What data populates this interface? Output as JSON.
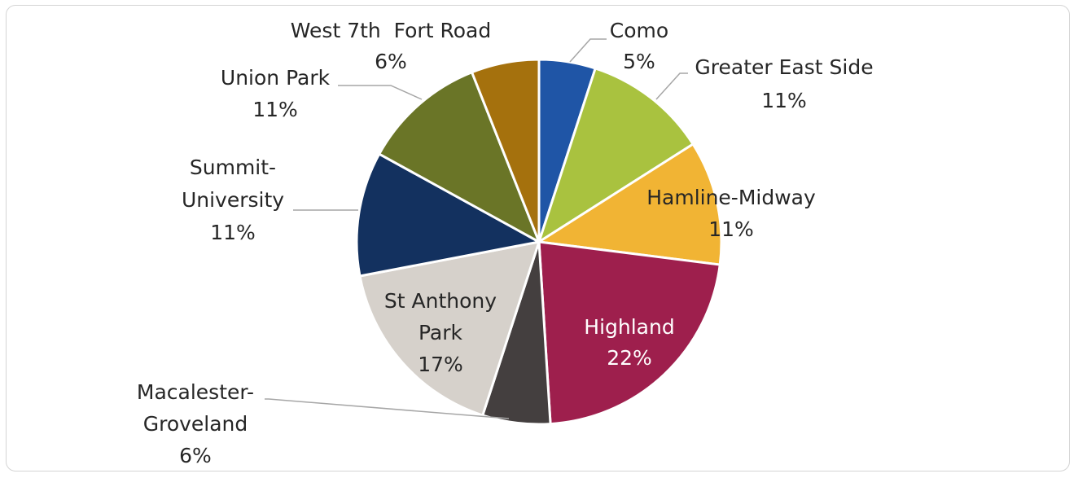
{
  "chart_data": {
    "type": "pie",
    "title": "",
    "slices": [
      {
        "name": "Como",
        "value": 5,
        "label": "5%",
        "color": "#1f55a6"
      },
      {
        "name": "Greater East Side",
        "value": 11,
        "label": "11%",
        "color": "#a9c23f"
      },
      {
        "name": "Hamline-Midway",
        "value": 11,
        "label": "11%",
        "color": "#f1b434"
      },
      {
        "name": "Highland",
        "value": 22,
        "label": "22%",
        "color": "#9e1f4d"
      },
      {
        "name": "Macalester-Groveland",
        "value": 6,
        "label": "6%",
        "color": "#443f3f"
      },
      {
        "name": "St Anthony Park",
        "value": 17,
        "label": "17%",
        "color": "#d6d1cb"
      },
      {
        "name": "Summit-University",
        "value": 11,
        "label": "11%",
        "color": "#13315f"
      },
      {
        "name": "Union Park",
        "value": 11,
        "label": "11%",
        "color": "#6a7527"
      },
      {
        "name": "West 7th  Fort Road",
        "value": 6,
        "label": "6%",
        "color": "#a5710d"
      }
    ]
  },
  "labels": {
    "como": {
      "line1": "Como",
      "pct": "5%"
    },
    "greater_east_side": {
      "line1": "Greater East Side",
      "pct": "11%"
    },
    "hamline_midway": {
      "line1": "Hamline-Midway",
      "pct": "11%"
    },
    "highland": {
      "line1": "Highland",
      "pct": "22%"
    },
    "macalester_groveland": {
      "line1": "Macalester-",
      "line2": "Groveland",
      "pct": "6%"
    },
    "st_anthony_park": {
      "line1": "St Anthony",
      "line2": "Park",
      "pct": "17%"
    },
    "summit_university": {
      "line1": "Summit-",
      "line2": "University",
      "pct": "11%"
    },
    "union_park": {
      "line1": "Union Park",
      "pct": "11%"
    },
    "west_7th": {
      "line1": "West 7th  Fort Road",
      "pct": "6%"
    }
  }
}
